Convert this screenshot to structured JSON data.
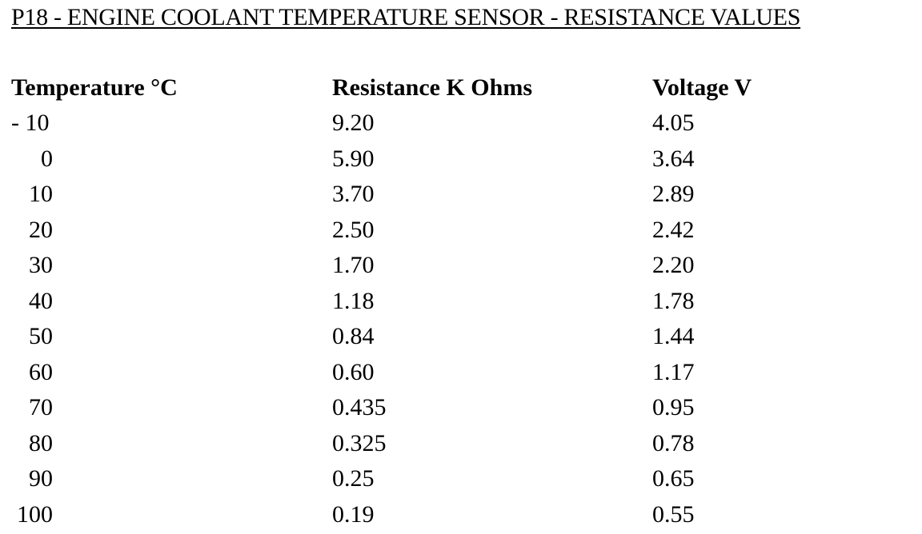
{
  "title": "P18 - ENGINE COOLANT TEMPERATURE SENSOR  - RESISTANCE VALUES",
  "headers": {
    "temperature": "Temperature °C",
    "resistance": "Resistance K Ohms",
    "voltage": "Voltage V"
  },
  "rows": [
    {
      "temperature": "- 10",
      "resistance": "9.20",
      "voltage": "4.05"
    },
    {
      "temperature": "0",
      "resistance": "5.90",
      "voltage": "3.64"
    },
    {
      "temperature": "10",
      "resistance": "3.70",
      "voltage": "2.89"
    },
    {
      "temperature": "20",
      "resistance": "2.50",
      "voltage": "2.42"
    },
    {
      "temperature": "30",
      "resistance": "1.70",
      "voltage": "2.20"
    },
    {
      "temperature": "40",
      "resistance": "1.18",
      "voltage": "1.78"
    },
    {
      "temperature": "50",
      "resistance": "0.84",
      "voltage": "1.44"
    },
    {
      "temperature": "60",
      "resistance": "0.60",
      "voltage": "1.17"
    },
    {
      "temperature": "70",
      "resistance": "0.435",
      "voltage": "0.95"
    },
    {
      "temperature": "80",
      "resistance": "0.325",
      "voltage": "0.78"
    },
    {
      "temperature": "90",
      "resistance": "0.25",
      "voltage": "0.65"
    },
    {
      "temperature": "100",
      "resistance": "0.19",
      "voltage": "0.55"
    }
  ]
}
